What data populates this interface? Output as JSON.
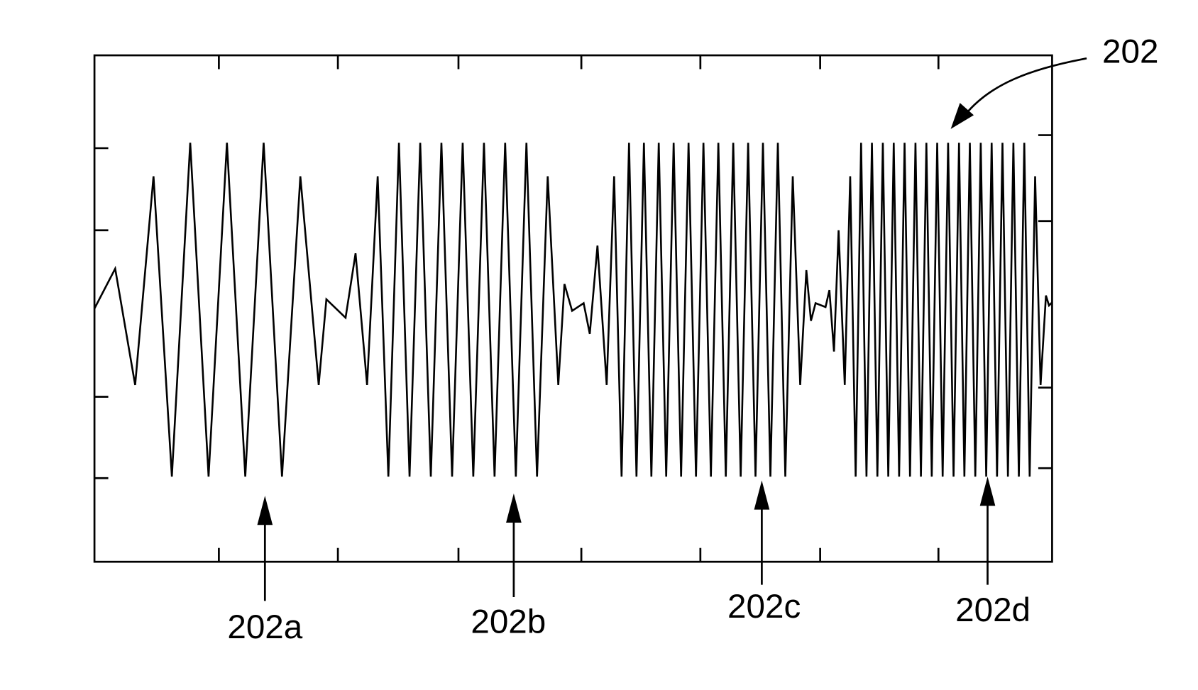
{
  "labels": {
    "signal": "202",
    "burst_a": "202a",
    "burst_b": "202b",
    "burst_c": "202c",
    "burst_d": "202d"
  }
}
